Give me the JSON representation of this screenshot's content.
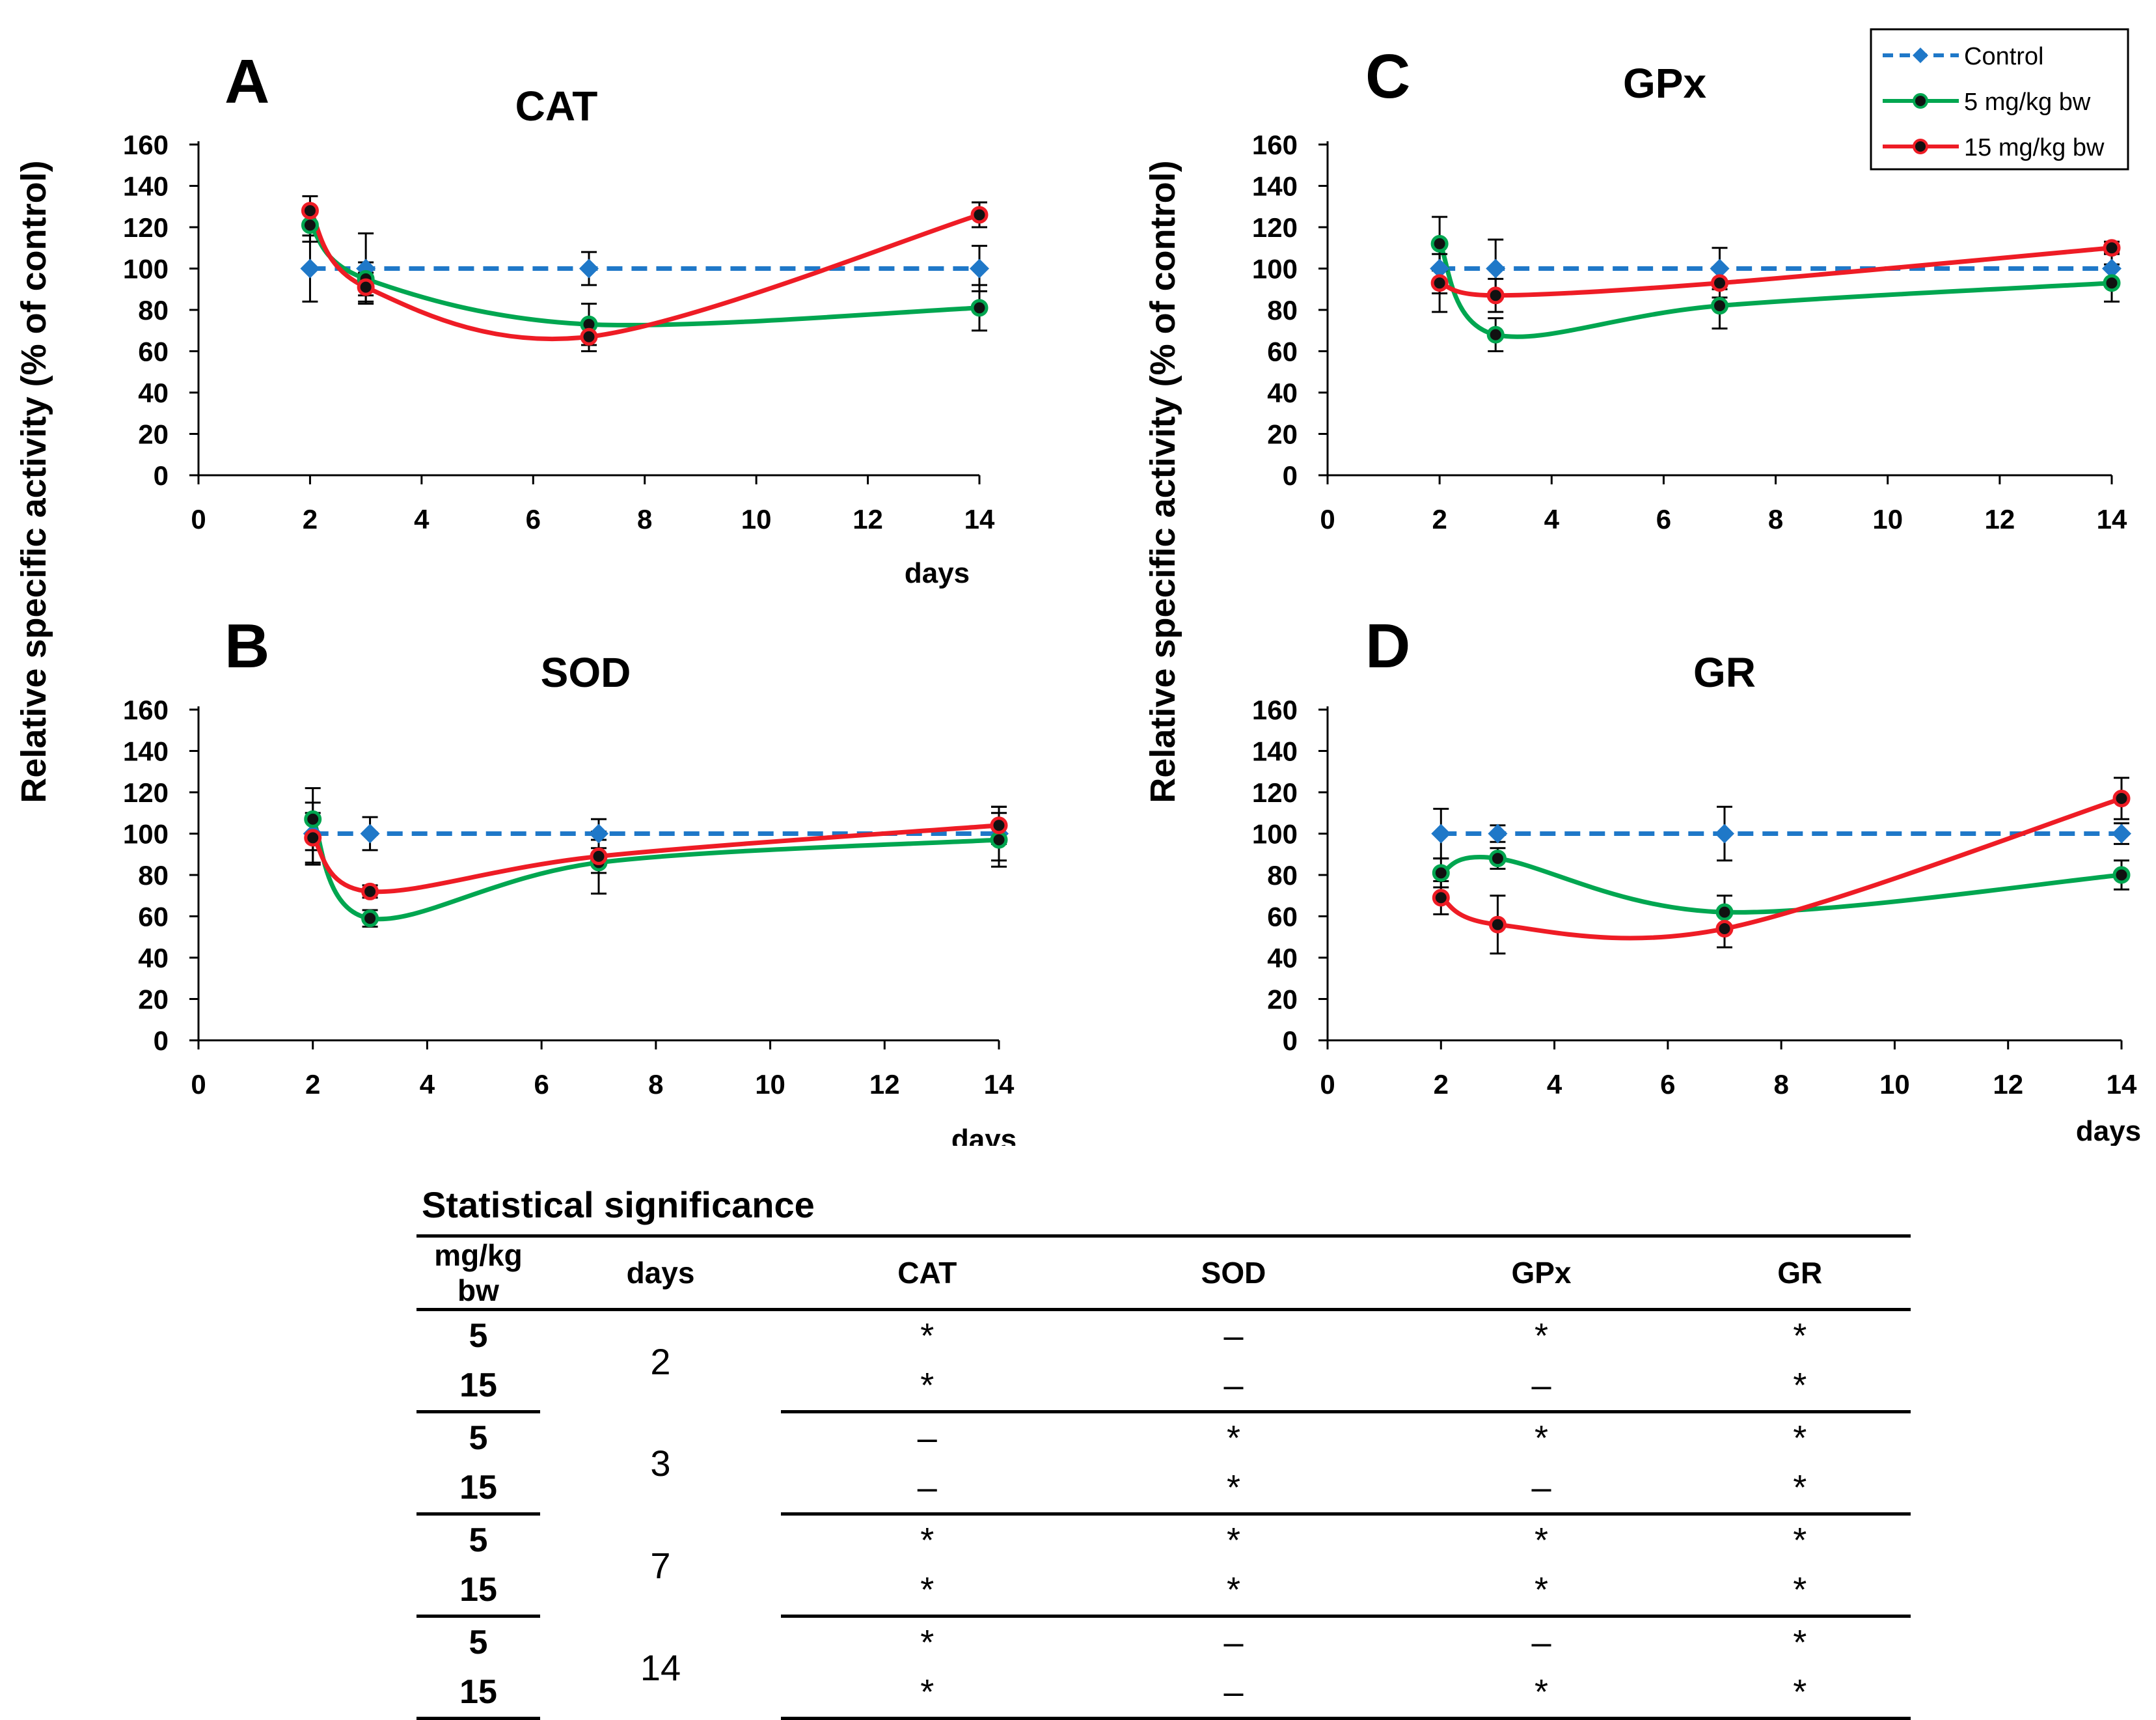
{
  "figure": {
    "y_axis_label": "Relative specific activity (% of control)",
    "x_axis_label": "days",
    "legend": [
      {
        "label": "Control",
        "color": "#1f78c8",
        "style": "dashed",
        "marker": "diamond"
      },
      {
        "label": "5 mg/kg bw",
        "color": "#00a650",
        "style": "solid",
        "marker": "circle"
      },
      {
        "label": "15 mg/kg bw",
        "color": "#ee1c25",
        "style": "solid",
        "marker": "circle"
      }
    ]
  },
  "chart_data": [
    {
      "type": "line",
      "panel": "A",
      "title": "CAT",
      "x": [
        2,
        3,
        7,
        14
      ],
      "xlim": [
        0,
        14
      ],
      "ylim": [
        0,
        160
      ],
      "xticks": [
        0,
        2,
        4,
        6,
        8,
        10,
        12,
        14
      ],
      "yticks": [
        0,
        20,
        40,
        60,
        80,
        100,
        120,
        140,
        160
      ],
      "xlabel": "days",
      "series": [
        {
          "name": "Control",
          "values": [
            100,
            100,
            100,
            100
          ],
          "errors": [
            16,
            17,
            8,
            11
          ]
        },
        {
          "name": "5 mg/kg bw",
          "values": [
            121,
            95,
            73,
            81
          ],
          "errors": [
            8,
            8,
            10,
            11
          ]
        },
        {
          "name": "15 mg/kg bw",
          "values": [
            128,
            91,
            67,
            126
          ],
          "errors": [
            7,
            7,
            7,
            6
          ]
        }
      ]
    },
    {
      "type": "line",
      "panel": "B",
      "title": "SOD",
      "x": [
        2,
        3,
        7,
        14
      ],
      "xlim": [
        0,
        14
      ],
      "ylim": [
        0,
        160
      ],
      "xticks": [
        0,
        2,
        4,
        6,
        8,
        10,
        12,
        14
      ],
      "yticks": [
        0,
        20,
        40,
        60,
        80,
        100,
        120,
        140,
        160
      ],
      "xlabel": "days",
      "series": [
        {
          "name": "Control",
          "values": [
            100,
            100,
            100,
            100
          ],
          "errors": [
            15,
            8,
            7,
            13
          ]
        },
        {
          "name": "5 mg/kg bw",
          "values": [
            107,
            59,
            86,
            97
          ],
          "errors": [
            15,
            4,
            15,
            13
          ]
        },
        {
          "name": "15 mg/kg bw",
          "values": [
            98,
            72,
            89,
            104
          ],
          "errors": [
            12,
            3,
            8,
            9
          ]
        }
      ]
    },
    {
      "type": "line",
      "panel": "C",
      "title": "GPx",
      "x": [
        2,
        3,
        7,
        14
      ],
      "xlim": [
        0,
        14
      ],
      "ylim": [
        0,
        160
      ],
      "xticks": [
        0,
        2,
        4,
        6,
        8,
        10,
        12,
        14
      ],
      "yticks": [
        0,
        20,
        40,
        60,
        80,
        100,
        120,
        140,
        160
      ],
      "xlabel": "",
      "series": [
        {
          "name": "Control",
          "values": [
            100,
            100,
            100,
            100
          ],
          "errors": [
            12,
            14,
            10,
            8
          ]
        },
        {
          "name": "5 mg/kg bw",
          "values": [
            112,
            68,
            82,
            93
          ],
          "errors": [
            13,
            8,
            11,
            9
          ]
        },
        {
          "name": "15 mg/kg bw",
          "values": [
            93,
            87,
            93,
            110
          ],
          "errors": [
            14,
            8,
            7,
            3
          ]
        }
      ]
    },
    {
      "type": "line",
      "panel": "D",
      "title": "GR",
      "x": [
        2,
        3,
        7,
        14
      ],
      "xlim": [
        0,
        14
      ],
      "ylim": [
        0,
        160
      ],
      "xticks": [
        0,
        2,
        4,
        6,
        8,
        10,
        12,
        14
      ],
      "yticks": [
        0,
        20,
        40,
        60,
        80,
        100,
        120,
        140,
        160
      ],
      "xlabel": "days",
      "series": [
        {
          "name": "Control",
          "values": [
            100,
            100,
            100,
            100
          ],
          "errors": [
            12,
            4,
            13,
            5
          ]
        },
        {
          "name": "5 mg/kg bw",
          "values": [
            81,
            88,
            62,
            80
          ],
          "errors": [
            7,
            5,
            8,
            7
          ]
        },
        {
          "name": "15 mg/kg bw",
          "values": [
            69,
            56,
            54,
            117
          ],
          "errors": [
            8,
            14,
            9,
            10
          ]
        }
      ]
    }
  ],
  "table": {
    "title": "Statistical significance",
    "headers": [
      "mg/kg bw",
      "days",
      "CAT",
      "SOD",
      "GPx",
      "GR"
    ],
    "groups": [
      {
        "day": "2",
        "rows": [
          {
            "dose": "5",
            "marks": [
              "*",
              "–",
              "*",
              "*"
            ]
          },
          {
            "dose": "15",
            "marks": [
              "*",
              "–",
              "–",
              "*"
            ]
          }
        ]
      },
      {
        "day": "3",
        "rows": [
          {
            "dose": "5",
            "marks": [
              "–",
              "*",
              "*",
              "*"
            ]
          },
          {
            "dose": "15",
            "marks": [
              "–",
              "*",
              "–",
              "*"
            ]
          }
        ]
      },
      {
        "day": "7",
        "rows": [
          {
            "dose": "5",
            "marks": [
              "*",
              "*",
              "*",
              "*"
            ]
          },
          {
            "dose": "15",
            "marks": [
              "*",
              "*",
              "*",
              "*"
            ]
          }
        ]
      },
      {
        "day": "14",
        "rows": [
          {
            "dose": "5",
            "marks": [
              "*",
              "–",
              "–",
              "*"
            ]
          },
          {
            "dose": "15",
            "marks": [
              "*",
              "–",
              "*",
              "*"
            ]
          }
        ]
      }
    ]
  }
}
